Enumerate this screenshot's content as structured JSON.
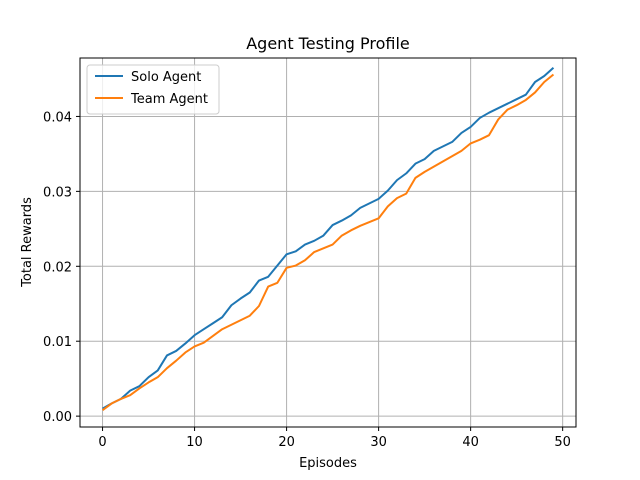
{
  "chart_data": {
    "type": "line",
    "title": "Agent Testing Profile",
    "xlabel": "Episodes",
    "ylabel": "Total Rewards",
    "xlim": [
      -2.45,
      51.45
    ],
    "ylim": [
      -0.00145,
      0.0478
    ],
    "xticks": [
      0,
      10,
      20,
      30,
      40,
      50
    ],
    "xtick_labels": [
      "0",
      "10",
      "20",
      "30",
      "40",
      "50"
    ],
    "yticks": [
      0.0,
      0.01,
      0.02,
      0.03,
      0.04
    ],
    "ytick_labels": [
      "0.00",
      "0.01",
      "0.02",
      "0.03",
      "0.04"
    ],
    "grid": true,
    "legend_position": "upper-left",
    "x": [
      0,
      1,
      2,
      3,
      4,
      5,
      6,
      7,
      8,
      9,
      10,
      11,
      12,
      13,
      14,
      15,
      16,
      17,
      18,
      19,
      20,
      21,
      22,
      23,
      24,
      25,
      26,
      27,
      28,
      29,
      30,
      31,
      32,
      33,
      34,
      35,
      36,
      37,
      38,
      39,
      40,
      41,
      42,
      43,
      44,
      45,
      46,
      47,
      48,
      49
    ],
    "series": [
      {
        "name": "Solo Agent",
        "color": "#1f77b4",
        "values": [
          0.001,
          0.0017,
          0.0023,
          0.0034,
          0.004,
          0.0052,
          0.0061,
          0.0081,
          0.0087,
          0.0097,
          0.0108,
          0.0116,
          0.0124,
          0.0132,
          0.0148,
          0.0157,
          0.0165,
          0.0181,
          0.0186,
          0.0201,
          0.0216,
          0.022,
          0.0229,
          0.0234,
          0.0241,
          0.0255,
          0.0261,
          0.0268,
          0.0278,
          0.0284,
          0.029,
          0.0301,
          0.0315,
          0.0324,
          0.0337,
          0.0343,
          0.0354,
          0.036,
          0.0366,
          0.0378,
          0.0386,
          0.0398,
          0.0405,
          0.0411,
          0.0417,
          0.0423,
          0.0429,
          0.0446,
          0.0454,
          0.0465
        ]
      },
      {
        "name": "Team Agent",
        "color": "#ff7f0e",
        "values": [
          0.0008,
          0.0017,
          0.0023,
          0.0028,
          0.0037,
          0.0045,
          0.0052,
          0.0064,
          0.0074,
          0.0085,
          0.0093,
          0.0098,
          0.0107,
          0.0116,
          0.0122,
          0.0128,
          0.0134,
          0.0147,
          0.0173,
          0.0178,
          0.0198,
          0.0201,
          0.0208,
          0.0219,
          0.0224,
          0.0229,
          0.0241,
          0.0248,
          0.0254,
          0.0259,
          0.0264,
          0.028,
          0.0291,
          0.0297,
          0.0318,
          0.0326,
          0.0333,
          0.034,
          0.0347,
          0.0354,
          0.0364,
          0.0369,
          0.0375,
          0.0396,
          0.0409,
          0.0415,
          0.0422,
          0.0432,
          0.0446,
          0.0456
        ]
      }
    ]
  }
}
